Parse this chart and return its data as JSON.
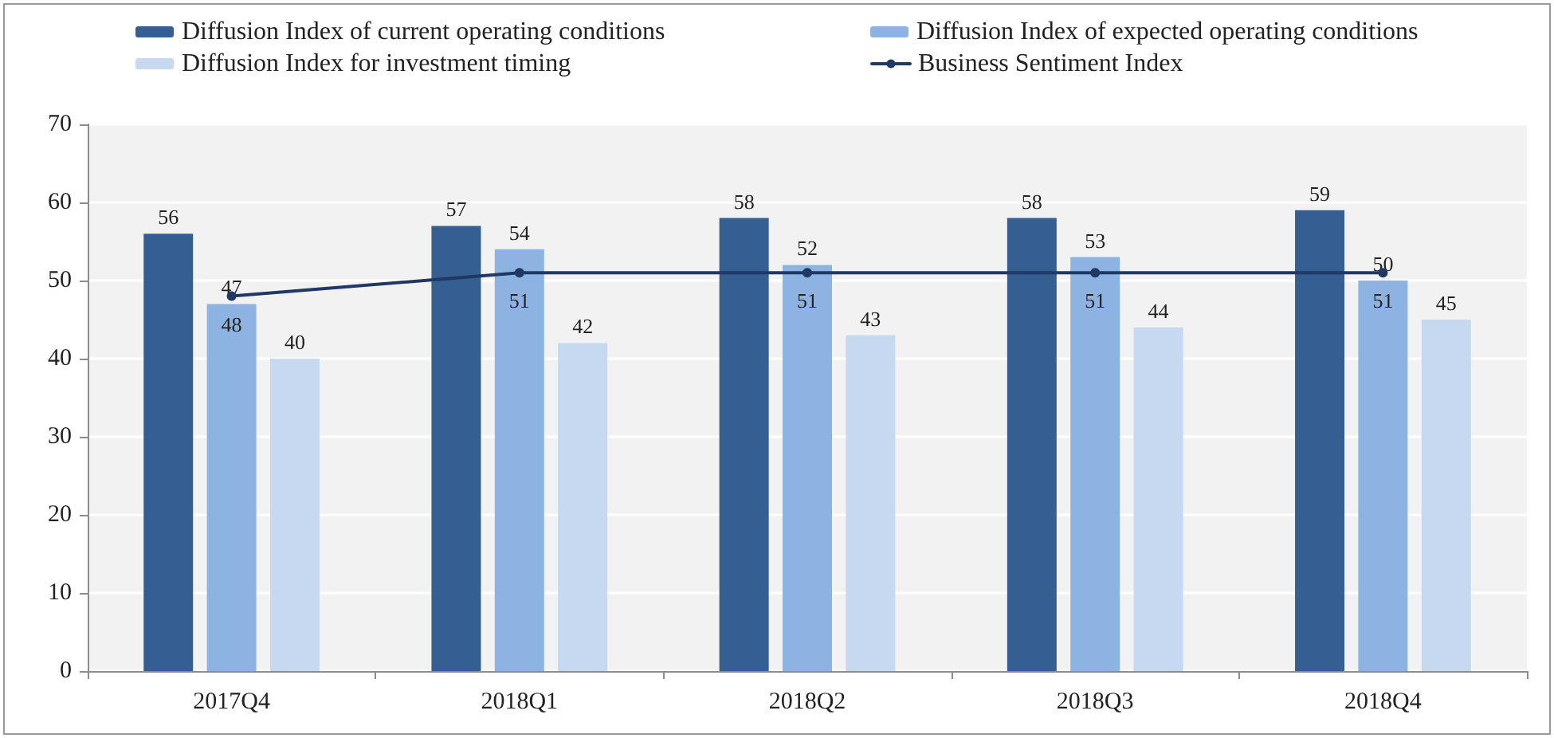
{
  "chart_data": {
    "type": "bar",
    "categories": [
      "2017Q4",
      "2018Q1",
      "2018Q2",
      "2018Q3",
      "2018Q4"
    ],
    "series": [
      {
        "name": "Diffusion Index of current operating conditions",
        "color": "#365f91",
        "values": [
          56,
          57,
          58,
          58,
          59
        ]
      },
      {
        "name": "Diffusion Index of expected operating conditions",
        "color": "#8db3e2",
        "values": [
          47,
          54,
          52,
          53,
          50
        ]
      },
      {
        "name": "Diffusion Index for investment timing",
        "color": "#c6d9f1",
        "values": [
          40,
          42,
          43,
          44,
          45
        ]
      },
      {
        "name": "Business Sentiment Index",
        "type": "line",
        "color": "#1f3864",
        "values": [
          48,
          51,
          51,
          51,
          51
        ],
        "marker": "circle",
        "line_style": "solid"
      }
    ],
    "ylim": [
      0,
      70
    ],
    "yticks": [
      0,
      10,
      20,
      30,
      40,
      50,
      60,
      70
    ],
    "grid": "y",
    "legend": "top",
    "data_labels": true
  }
}
